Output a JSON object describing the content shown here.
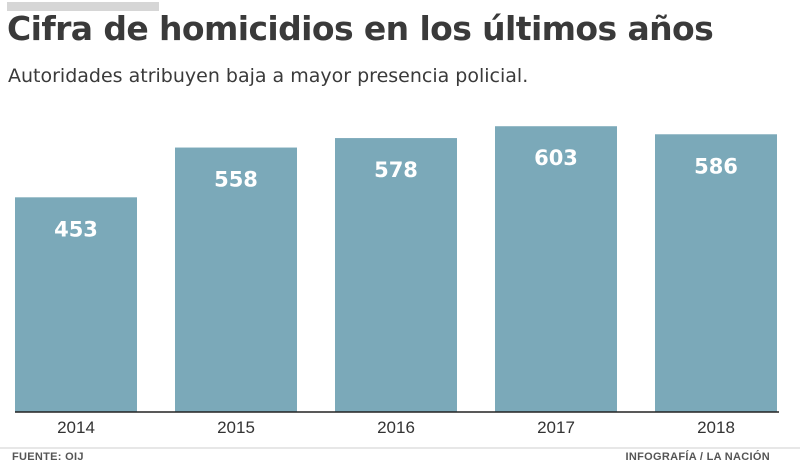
{
  "title": "Cifra de homicidios en los últimos años",
  "subtitle": "Autoridades atribuyen baja a mayor presencia policial.",
  "footer": {
    "source": "FUENTE: OIJ",
    "credit": "INFOGRAFÍA / LA NACIÓN"
  },
  "colors": {
    "bar": "#7ba9b9",
    "text": "#3a3a3a"
  },
  "chart_data": {
    "type": "bar",
    "title": "Cifra de homicidios en los últimos años",
    "subtitle": "Autoridades atribuyen baja a mayor presencia policial.",
    "categories": [
      "2014",
      "2015",
      "2016",
      "2017",
      "2018"
    ],
    "values": [
      453,
      558,
      578,
      603,
      586
    ],
    "xlabel": "",
    "ylabel": "",
    "ylim": [
      0,
      633
    ],
    "grid": false,
    "legend": "none"
  }
}
